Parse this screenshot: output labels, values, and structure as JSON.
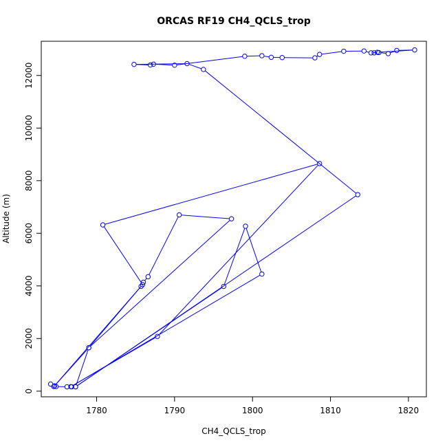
{
  "chart_data": {
    "type": "scatter",
    "title": "ORCAS RF19 CH4_QCLS_trop",
    "xlabel": "CH4_QCLS_trop",
    "ylabel": "Altitude (m)",
    "xlim": [
      1772.9,
      1822.3
    ],
    "ylim": [
      -215,
      13300
    ],
    "xticks": [
      1780,
      1790,
      1800,
      1810,
      1820
    ],
    "yticks": [
      0,
      2000,
      4000,
      6000,
      8000,
      10000,
      12000
    ],
    "grid": false,
    "legend": "none",
    "series": [
      {
        "color": "#0000ff",
        "marker": "open-circle",
        "connected": true,
        "points": [
          [
            1774.1,
            270
          ],
          [
            1774.5,
            175
          ],
          [
            1774.8,
            175
          ],
          [
            1776.2,
            165
          ],
          [
            1776.8,
            165
          ],
          [
            1777.3,
            165
          ],
          [
            1779.0,
            1650
          ],
          [
            1785.7,
            3980
          ],
          [
            1786.0,
            4140
          ],
          [
            1786.6,
            4350
          ],
          [
            1790.6,
            6700
          ],
          [
            1797.3,
            6550
          ],
          [
            1779.0,
            1650
          ],
          [
            1774.6,
            200
          ],
          [
            1785.9,
            4050
          ],
          [
            1780.8,
            6320
          ],
          [
            1808.6,
            8650
          ],
          [
            1787.8,
            2080
          ],
          [
            1776.7,
            170
          ],
          [
            1801.2,
            4450
          ],
          [
            1799.1,
            6270
          ],
          [
            1796.3,
            3980
          ],
          [
            1777.3,
            165
          ],
          [
            1813.5,
            7470
          ],
          [
            1793.7,
            12230
          ],
          [
            1791.6,
            12450
          ],
          [
            1784.8,
            12420
          ],
          [
            1786.9,
            12400
          ],
          [
            1787.3,
            12430
          ],
          [
            1790.0,
            12390
          ],
          [
            1799.0,
            12730
          ],
          [
            1801.2,
            12750
          ],
          [
            1802.4,
            12690
          ],
          [
            1803.8,
            12680
          ],
          [
            1808.0,
            12670
          ],
          [
            1808.6,
            12800
          ],
          [
            1811.7,
            12920
          ],
          [
            1814.3,
            12930
          ],
          [
            1815.2,
            12860
          ],
          [
            1816.2,
            12870
          ],
          [
            1817.4,
            12830
          ],
          [
            1818.5,
            12950
          ],
          [
            1820.8,
            12970
          ],
          [
            1816.0,
            12880
          ],
          [
            1815.6,
            12860
          ]
        ]
      }
    ]
  }
}
